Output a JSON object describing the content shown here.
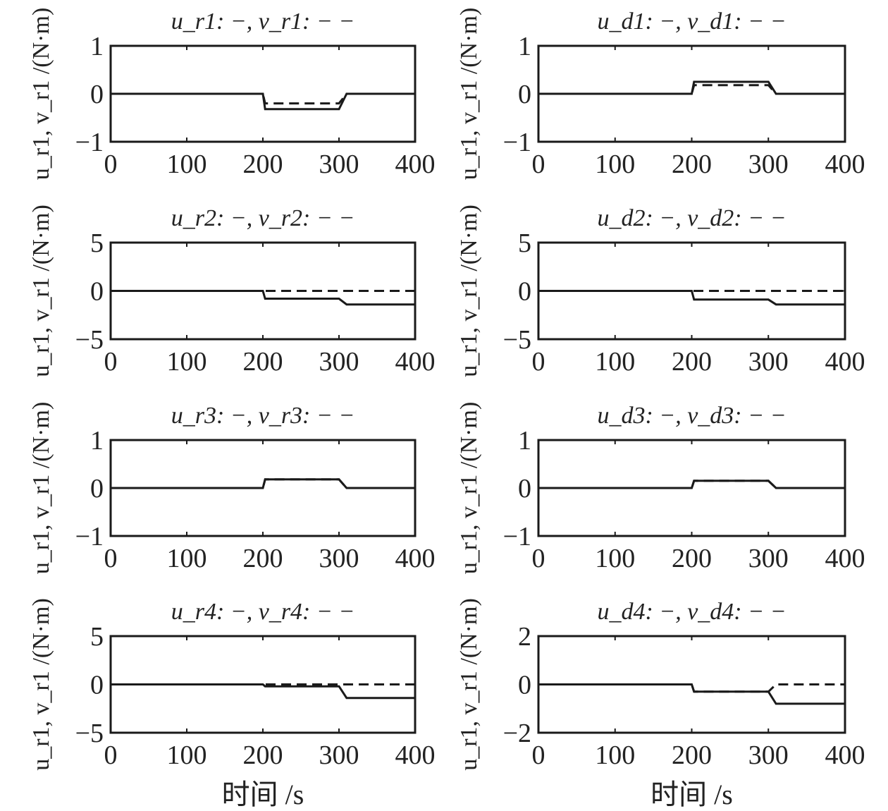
{
  "xlabel": "时间 /s",
  "chart_data": [
    {
      "type": "line",
      "title": "u_r1: −, v_r1: − −",
      "ylabel": "u_r1, v_r1 /(N·m)",
      "xlim": [
        0,
        400
      ],
      "ylim": [
        -1,
        1
      ],
      "xticks": [
        "0",
        "100",
        "200",
        "300",
        "400"
      ],
      "yticks": [
        "1",
        "0",
        "−1"
      ],
      "series": [
        {
          "name": "u_r1",
          "style": "solid",
          "x": [
            0,
            5,
            200,
            203,
            300,
            310,
            400
          ],
          "y": [
            0,
            0,
            0,
            -0.32,
            -0.32,
            0,
            0
          ]
        },
        {
          "name": "v_r1",
          "style": "dashed",
          "x": [
            0,
            200,
            203,
            300,
            310,
            400
          ],
          "y": [
            0,
            0,
            -0.2,
            -0.2,
            0,
            0
          ]
        }
      ]
    },
    {
      "type": "line",
      "title": "u_d1: −, v_d1: − −",
      "ylabel": "u_r1, v_r1 /(N·m)",
      "xlim": [
        0,
        400
      ],
      "ylim": [
        -1,
        1
      ],
      "xticks": [
        "0",
        "100",
        "200",
        "300",
        "400"
      ],
      "yticks": [
        "1",
        "0",
        "−1"
      ],
      "series": [
        {
          "name": "u_d1",
          "style": "solid",
          "x": [
            0,
            5,
            200,
            203,
            300,
            310,
            400
          ],
          "y": [
            0,
            0,
            0,
            0.25,
            0.25,
            0,
            0
          ]
        },
        {
          "name": "v_d1",
          "style": "dashed",
          "x": [
            0,
            200,
            203,
            300,
            310,
            400
          ],
          "y": [
            0,
            0,
            0.18,
            0.18,
            0,
            0
          ]
        }
      ]
    },
    {
      "type": "line",
      "title": "u_r2: −, v_r2: − −",
      "ylabel": "u_r1, v_r1 /(N·m)",
      "xlim": [
        0,
        400
      ],
      "ylim": [
        -5,
        5
      ],
      "xticks": [
        "0",
        "100",
        "200",
        "300",
        "400"
      ],
      "yticks": [
        "5",
        "0",
        "−5"
      ],
      "series": [
        {
          "name": "u_r2",
          "style": "solid",
          "x": [
            0,
            200,
            203,
            300,
            310,
            400
          ],
          "y": [
            0,
            0,
            -0.8,
            -0.8,
            -1.4,
            -1.4
          ]
        },
        {
          "name": "v_r2",
          "style": "dashed",
          "x": [
            0,
            400
          ],
          "y": [
            0,
            0
          ]
        }
      ]
    },
    {
      "type": "line",
      "title": "u_d2: −, v_d2: − −",
      "ylabel": "u_r1, v_r1 /(N·m)",
      "xlim": [
        0,
        400
      ],
      "ylim": [
        -5,
        5
      ],
      "xticks": [
        "0",
        "100",
        "200",
        "300",
        "400"
      ],
      "yticks": [
        "5",
        "0",
        "−5"
      ],
      "series": [
        {
          "name": "u_d2",
          "style": "solid",
          "x": [
            0,
            200,
            203,
            300,
            310,
            400
          ],
          "y": [
            0,
            0,
            -0.9,
            -0.9,
            -1.4,
            -1.4
          ]
        },
        {
          "name": "v_d2",
          "style": "dashed",
          "x": [
            0,
            400
          ],
          "y": [
            0,
            0
          ]
        }
      ]
    },
    {
      "type": "line",
      "title": "u_r3: −, v_r3: − −",
      "ylabel": "u_r1, v_r1 /(N·m)",
      "xlim": [
        0,
        400
      ],
      "ylim": [
        -1,
        1
      ],
      "xticks": [
        "0",
        "100",
        "200",
        "300",
        "400"
      ],
      "yticks": [
        "1",
        "0",
        "−1"
      ],
      "series": [
        {
          "name": "u_r3",
          "style": "solid",
          "x": [
            0,
            200,
            203,
            300,
            310,
            400
          ],
          "y": [
            0,
            0,
            0.18,
            0.18,
            0,
            0
          ]
        },
        {
          "name": "v_r3",
          "style": "dashed",
          "x": [
            0,
            200,
            203,
            300,
            310,
            400
          ],
          "y": [
            0,
            0,
            0.18,
            0.18,
            0,
            0
          ]
        }
      ]
    },
    {
      "type": "line",
      "title": "u_d3: −, v_d3: − −",
      "ylabel": "u_r1, v_r1 /(N·m)",
      "xlim": [
        0,
        400
      ],
      "ylim": [
        -1,
        1
      ],
      "xticks": [
        "0",
        "100",
        "200",
        "300",
        "400"
      ],
      "yticks": [
        "1",
        "0",
        "−1"
      ],
      "series": [
        {
          "name": "u_d3",
          "style": "solid",
          "x": [
            0,
            200,
            203,
            300,
            310,
            400
          ],
          "y": [
            0,
            0,
            0.15,
            0.15,
            0,
            0
          ]
        },
        {
          "name": "v_d3",
          "style": "dashed",
          "x": [
            0,
            200,
            203,
            300,
            310,
            400
          ],
          "y": [
            0,
            0,
            0.15,
            0.15,
            0,
            0
          ]
        }
      ]
    },
    {
      "type": "line",
      "title": "u_r4: −, v_r4: − −",
      "ylabel": "u_r1, v_r1 /(N·m)",
      "xlim": [
        0,
        400
      ],
      "ylim": [
        -5,
        5
      ],
      "xticks": [
        "0",
        "100",
        "200",
        "300",
        "400"
      ],
      "yticks": [
        "5",
        "0",
        "−5"
      ],
      "series": [
        {
          "name": "u_r4",
          "style": "solid",
          "x": [
            0,
            200,
            203,
            300,
            310,
            400
          ],
          "y": [
            0,
            0,
            -0.2,
            -0.2,
            -1.4,
            -1.4
          ]
        },
        {
          "name": "v_r4",
          "style": "dashed",
          "x": [
            0,
            400
          ],
          "y": [
            0,
            0
          ]
        }
      ]
    },
    {
      "type": "line",
      "title": "u_d4: −, v_d4: − −",
      "ylabel": "u_r1, v_r1 /(N·m)",
      "xlim": [
        0,
        400
      ],
      "ylim": [
        -2,
        2
      ],
      "xticks": [
        "0",
        "100",
        "200",
        "300",
        "400"
      ],
      "yticks": [
        "2",
        "0",
        "−2"
      ],
      "series": [
        {
          "name": "u_d4",
          "style": "solid",
          "x": [
            0,
            200,
            203,
            300,
            310,
            400
          ],
          "y": [
            0,
            0,
            -0.3,
            -0.3,
            -0.8,
            -0.8
          ]
        },
        {
          "name": "v_d4",
          "style": "dashed",
          "x": [
            0,
            200,
            203,
            300,
            310,
            400
          ],
          "y": [
            0,
            0,
            -0.3,
            -0.3,
            0,
            0
          ]
        }
      ]
    }
  ]
}
